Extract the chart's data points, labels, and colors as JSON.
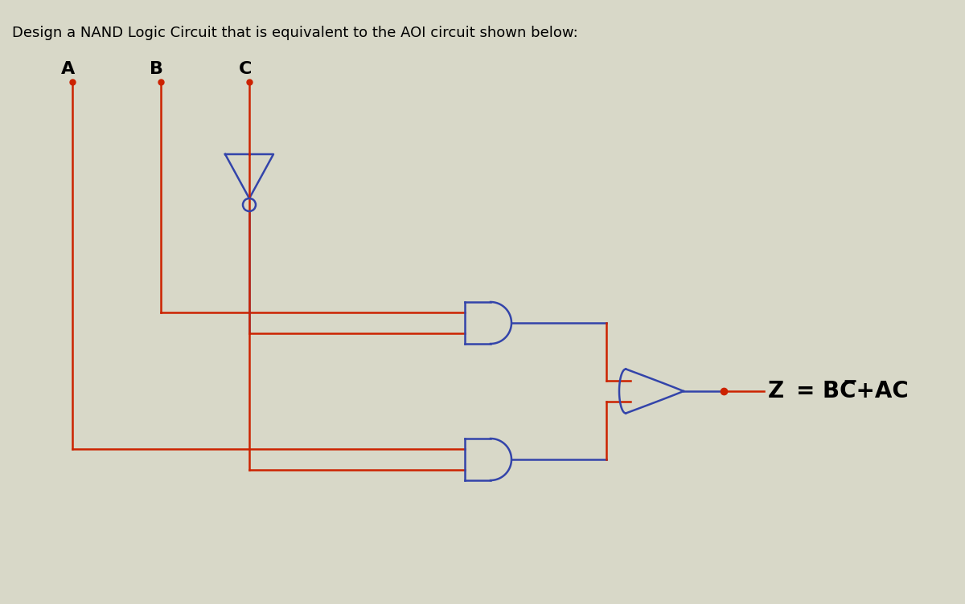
{
  "title": "Design a NAND Logic Circuit that is equivalent to the AOI circuit shown below:",
  "title_fontsize": 13,
  "bg_color": "#d8d8c8",
  "wire_color_red": "#cc2200",
  "wire_color_blue": "#3344aa",
  "label_A": "A",
  "label_B": "B",
  "label_C": "C",
  "label_Z": "Z",
  "equation": "Z = BC̅+AC",
  "dot_color": "#cc2200",
  "output_dot_color": "#cc2200"
}
